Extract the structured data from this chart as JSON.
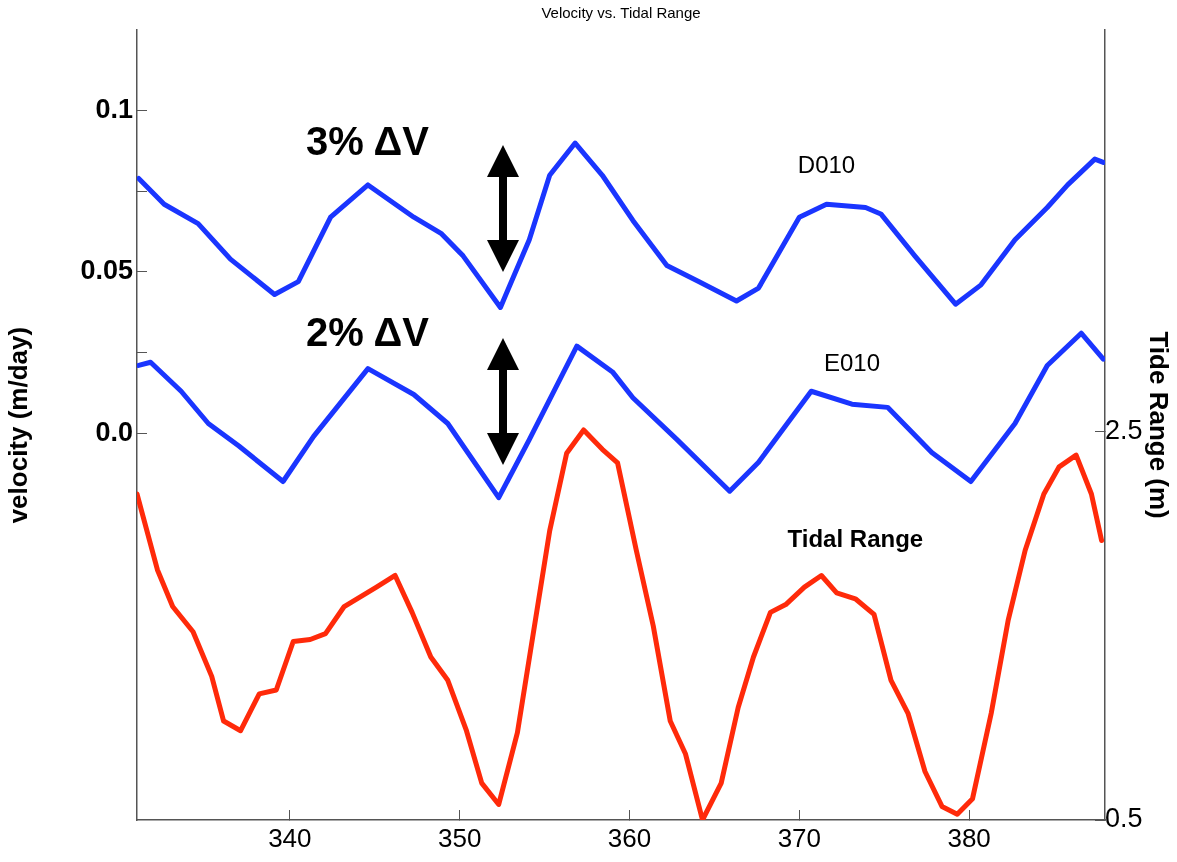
{
  "chart_data": {
    "type": "line",
    "title": "Velocity vs. Tidal Range",
    "ylabel": "velocity (m/day)",
    "y2label": "Tide Range (m)",
    "xlim": [
      331,
      388
    ],
    "xticks": [
      340,
      350,
      360,
      370,
      380
    ],
    "ylim": [
      -0.12,
      0.125
    ],
    "yticks": [
      {
        "value": 0,
        "label": "0.0"
      },
      {
        "value": 0.025,
        "label": null
      },
      0.05,
      {
        "value": 0.075,
        "label": null
      },
      0.1
    ],
    "y2lim": [
      0.5,
      4.57
    ],
    "y2ticks": [
      0.5,
      2.5
    ],
    "grid": false,
    "legend": false,
    "marker": "none",
    "line_style": "solid",
    "annotations": [
      "3% ΔV",
      "2% ΔV"
    ],
    "series": [
      {
        "name": "D010",
        "color": "#1a35ff",
        "x": [
          331.1,
          332.6,
          334.6,
          336.5,
          339.1,
          340.5,
          342.4,
          344.6,
          347.3,
          348.9,
          350.2,
          352.4,
          354.1,
          355.3,
          356.8,
          358.4,
          360.2,
          362.2,
          364.1,
          366.3,
          367.6,
          370.0,
          371.6,
          373.9,
          374.8,
          376.8,
          379.2,
          380.7,
          382.7,
          384.6,
          385.8,
          387.4,
          387.9
        ],
        "values": [
          0.079,
          0.071,
          0.065,
          0.054,
          0.043,
          0.047,
          0.067,
          0.077,
          0.067,
          0.062,
          0.055,
          0.039,
          0.06,
          0.08,
          0.09,
          0.08,
          0.066,
          0.052,
          0.047,
          0.041,
          0.045,
          0.067,
          0.071,
          0.07,
          0.068,
          0.055,
          0.04,
          0.046,
          0.06,
          0.07,
          0.077,
          0.085,
          0.084
        ]
      },
      {
        "name": "E010",
        "color": "#1a35ff",
        "x": [
          331.1,
          331.8,
          333.6,
          335.2,
          337.0,
          339.6,
          341.4,
          344.6,
          347.3,
          349.3,
          352.3,
          354.1,
          356.9,
          359.0,
          360.2,
          362.8,
          365.9,
          367.6,
          370.7,
          373.1,
          375.2,
          377.8,
          380.1,
          382.7,
          384.6,
          386.6,
          387.9
        ],
        "values": [
          0.021,
          0.022,
          0.013,
          0.003,
          -0.004,
          -0.015,
          -0.001,
          0.02,
          0.012,
          0.003,
          -0.02,
          -0.002,
          0.027,
          0.019,
          0.011,
          -0.002,
          -0.018,
          -0.009,
          0.013,
          0.009,
          0.008,
          -0.006,
          -0.015,
          0.003,
          0.021,
          0.031,
          0.023
        ]
      },
      {
        "name": "Tidal Range",
        "color": "#ff2a0a",
        "axis": "y2",
        "x": [
          331.0,
          332.2,
          333.1,
          334.3,
          335.4,
          336.1,
          337.1,
          338.2,
          339.2,
          340.2,
          341.2,
          342.1,
          343.2,
          345.1,
          346.2,
          347.2,
          348.3,
          349.3,
          350.4,
          351.3,
          352.3,
          353.4,
          355.3,
          356.3,
          357.3,
          358.4,
          359.3,
          360.4,
          361.4,
          362.4,
          363.3,
          364.3,
          365.4,
          366.4,
          367.3,
          368.3,
          369.2,
          370.3,
          371.3,
          372.2,
          373.3,
          374.4,
          375.4,
          376.4,
          377.4,
          378.4,
          379.3,
          380.2,
          381.3,
          382.3,
          383.3,
          384.4,
          385.3,
          386.3,
          387.2,
          387.8
        ],
        "values": [
          2.18,
          1.79,
          1.6,
          1.47,
          1.24,
          1.01,
          0.96,
          1.15,
          1.17,
          1.42,
          1.43,
          1.46,
          1.6,
          1.7,
          1.76,
          1.57,
          1.34,
          1.22,
          0.96,
          0.69,
          0.58,
          0.95,
          1.99,
          2.39,
          2.51,
          2.41,
          2.34,
          1.89,
          1.5,
          1.01,
          0.84,
          0.5,
          0.69,
          1.08,
          1.34,
          1.57,
          1.61,
          1.7,
          1.76,
          1.67,
          1.64,
          1.56,
          1.22,
          1.05,
          0.75,
          0.57,
          0.53,
          0.61,
          1.05,
          1.53,
          1.89,
          2.18,
          2.32,
          2.38,
          2.18,
          1.94
        ]
      }
    ]
  }
}
